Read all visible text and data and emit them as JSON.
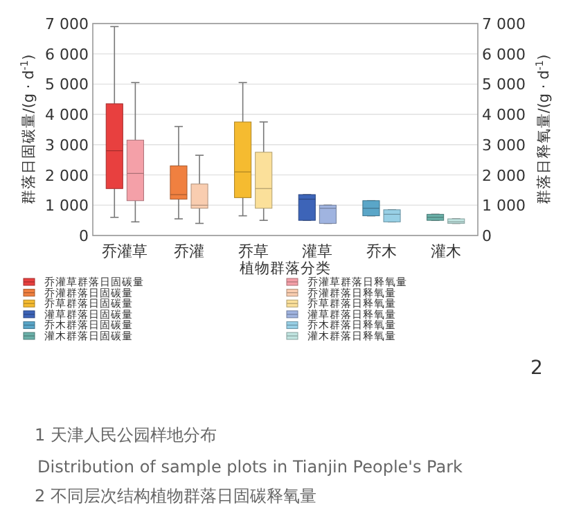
{
  "chart_data": {
    "type": "box",
    "categories": [
      "乔灌草",
      "乔灌",
      "乔草",
      "灌草",
      "乔木",
      "灌木"
    ],
    "xlabel": "植物群落分类",
    "ylabel": "群落日固碳量/(g · d$^{-1}$)",
    "y2label": "群落日释氧量/(g · d$^{-1}$)",
    "ylim": [
      0,
      7000
    ],
    "yticks": [
      0,
      {
        "value": 1000,
        "label": "1 000"
      },
      {
        "value": 2000,
        "label": "2 000"
      },
      {
        "value": 3000,
        "label": "3 000"
      },
      {
        "value": 4000,
        "label": "4 000"
      },
      {
        "value": 5000,
        "label": "5 000"
      },
      {
        "value": 6000,
        "label": "6 000"
      },
      {
        "value": 7000,
        "label": "7 000"
      }
    ],
    "y2lim": [
      0,
      7000
    ],
    "y2ticks": [
      0,
      {
        "value": 1000,
        "label": "1 000"
      },
      {
        "value": 2000,
        "label": "2 000"
      },
      {
        "value": 3000,
        "label": "3 000"
      },
      {
        "value": 4000,
        "label": "4 000"
      },
      {
        "value": 5000,
        "label": "5 000"
      },
      {
        "value": 6000,
        "label": "6 000"
      },
      {
        "value": 7000,
        "label": "7 000"
      }
    ],
    "grid": "y",
    "legend": "bottom",
    "series": [
      {
        "name": "乔灌草群落日固碳量",
        "color": "#e8403f",
        "boxes": [
          {
            "low": 600,
            "q1": 1550,
            "median": 2800,
            "q3": 4350,
            "high": 6900
          },
          null,
          null,
          null,
          null,
          null
        ]
      },
      {
        "name": "乔灌群落日固碳量",
        "color": "#f08040",
        "boxes": [
          null,
          {
            "low": 550,
            "q1": 1200,
            "median": 1350,
            "q3": 2300,
            "high": 3600
          },
          null,
          null,
          null,
          null
        ]
      },
      {
        "name": "乔草群落日固碳量",
        "color": "#f5bb30",
        "boxes": [
          null,
          null,
          {
            "low": 650,
            "q1": 1250,
            "median": 2100,
            "q3": 3750,
            "high": 5050
          },
          null,
          null,
          null
        ]
      },
      {
        "name": "灌草群落日固碳量",
        "color": "#3d64b8",
        "boxes": [
          null,
          null,
          null,
          {
            "low": 500,
            "q1": 500,
            "median": 1200,
            "q3": 1350,
            "high": 1350
          },
          null,
          null
        ]
      },
      {
        "name": "乔木群落日固碳量",
        "color": "#5aa6c8",
        "boxes": [
          null,
          null,
          null,
          null,
          {
            "low": 650,
            "q1": 650,
            "median": 900,
            "q3": 1150,
            "high": 1150
          },
          null
        ]
      },
      {
        "name": "灌木群落日固碳量",
        "color": "#6ab0a8",
        "boxes": [
          null,
          null,
          null,
          null,
          null,
          {
            "low": 500,
            "q1": 500,
            "median": 600,
            "q3": 700,
            "high": 700
          }
        ]
      },
      {
        "name": "乔灌草群落日释氧量",
        "color": "#f4a0a8",
        "boxes": [
          {
            "low": 450,
            "q1": 1150,
            "median": 2050,
            "q3": 3150,
            "high": 5050
          },
          null,
          null,
          null,
          null,
          null
        ]
      },
      {
        "name": "乔灌群落日释氧量",
        "color": "#f9cdb0",
        "boxes": [
          null,
          {
            "low": 400,
            "q1": 900,
            "median": 1000,
            "q3": 1700,
            "high": 2650
          },
          null,
          null,
          null,
          null
        ]
      },
      {
        "name": "乔草群落日释氧量",
        "color": "#fbe09a",
        "boxes": [
          null,
          null,
          {
            "low": 500,
            "q1": 900,
            "median": 1550,
            "q3": 2750,
            "high": 3750
          },
          null,
          null,
          null
        ]
      },
      {
        "name": "灌草群落日释氧量",
        "color": "#a0b4e0",
        "boxes": [
          null,
          null,
          null,
          {
            "low": 400,
            "q1": 400,
            "median": 900,
            "q3": 1000,
            "high": 1000
          },
          null,
          null
        ]
      },
      {
        "name": "乔木群落日释氧量",
        "color": "#98d0e6",
        "boxes": [
          null,
          null,
          null,
          null,
          {
            "low": 450,
            "q1": 450,
            "median": 700,
            "q3": 850,
            "high": 850
          },
          null
        ]
      },
      {
        "name": "灌木群落日释氧量",
        "color": "#c0e4e0",
        "boxes": [
          null,
          null,
          null,
          null,
          null,
          {
            "low": 400,
            "q1": 400,
            "median": 450,
            "q3": 550,
            "high": 550
          }
        ]
      }
    ],
    "annotations": [
      "2",
      "1 天津人民公园样地分布",
      "Distribution of sample plots in Tianjin People's Park",
      "2 不同层次结构植物群落日固碳释氧量"
    ]
  }
}
